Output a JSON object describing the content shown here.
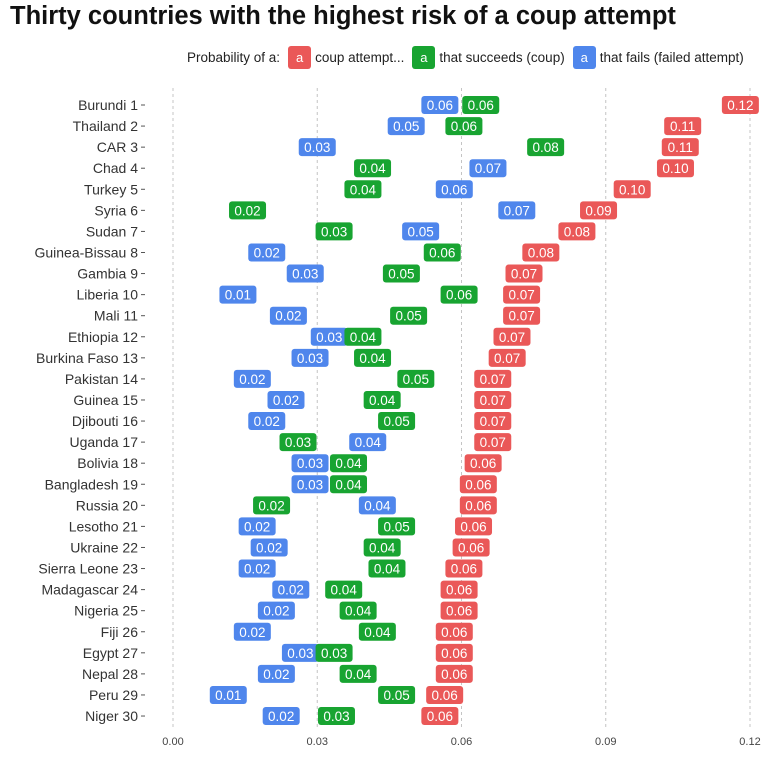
{
  "title": "Thirty countries with the highest risk of a coup attempt",
  "legend": {
    "prefix": "Probability of a:",
    "key_glyph": "a",
    "items": [
      {
        "label": "coup attempt...",
        "color": "#ea5858"
      },
      {
        "label": "that succeeds (coup)",
        "color": "#18a431"
      },
      {
        "label": "that fails (failed attempt)",
        "color": "#4f86ec"
      }
    ]
  },
  "chart_data": {
    "type": "scatter",
    "title": "Thirty countries with the highest risk of a coup attempt",
    "xlabel": "",
    "ylabel": "",
    "xlim": [
      0,
      0.12
    ],
    "x_ticks": [
      "0.00",
      "0.03",
      "0.06",
      "0.09",
      "0.12"
    ],
    "grid": "vertical dashed",
    "legend_position": "top",
    "categories": [
      "Burundi 1",
      "Thailand 2",
      "CAR 3",
      "Chad 4",
      "Turkey 5",
      "Syria 6",
      "Sudan 7",
      "Guinea-Bissau 8",
      "Gambia 9",
      "Liberia 10",
      "Mali 11",
      "Ethiopia 12",
      "Burkina Faso 13",
      "Pakistan 14",
      "Guinea 15",
      "Djibouti 16",
      "Uganda 17",
      "Bolivia 18",
      "Bangladesh 19",
      "Russia 20",
      "Lesotho 21",
      "Ukraine 22",
      "Sierra Leone 23",
      "Madagascar 24",
      "Nigeria 25",
      "Fiji 26",
      "Egypt 27",
      "Nepal 28",
      "Peru 29",
      "Niger 30"
    ],
    "series": [
      {
        "name": "coup attempt...",
        "color": "#ea5858",
        "values": [
          0.118,
          0.106,
          0.1055,
          0.1045,
          0.0955,
          0.0885,
          0.084,
          0.0765,
          0.073,
          0.0725,
          0.0725,
          0.0705,
          0.0695,
          0.0665,
          0.0665,
          0.0665,
          0.0665,
          0.0645,
          0.0635,
          0.0635,
          0.0625,
          0.062,
          0.0605,
          0.0595,
          0.0595,
          0.0585,
          0.0585,
          0.0585,
          0.0565,
          0.0555
        ],
        "labels": [
          "0.12",
          "0.11",
          "0.11",
          "0.10",
          "0.10",
          "0.09",
          "0.08",
          "0.08",
          "0.07",
          "0.07",
          "0.07",
          "0.07",
          "0.07",
          "0.07",
          "0.07",
          "0.07",
          "0.07",
          "0.06",
          "0.06",
          "0.06",
          "0.06",
          "0.06",
          "0.06",
          "0.06",
          "0.06",
          "0.06",
          "0.06",
          "0.06",
          "0.06",
          "0.06"
        ]
      },
      {
        "name": "that succeeds (coup)",
        "color": "#18a431",
        "values": [
          0.064,
          0.0605,
          0.0775,
          0.0415,
          0.0395,
          0.0155,
          0.0335,
          0.056,
          0.0475,
          0.0595,
          0.049,
          0.0395,
          0.0415,
          0.0505,
          0.0435,
          0.0465,
          0.026,
          0.0365,
          0.0365,
          0.0205,
          0.0465,
          0.0435,
          0.0445,
          0.0355,
          0.0385,
          0.0425,
          0.0335,
          0.0385,
          0.0465,
          0.034
        ],
        "labels": [
          "0.06",
          "0.06",
          "0.08",
          "0.04",
          "0.04",
          "0.02",
          "0.03",
          "0.06",
          "0.05",
          "0.06",
          "0.05",
          "0.04",
          "0.04",
          "0.05",
          "0.04",
          "0.05",
          "0.03",
          "0.04",
          "0.04",
          "0.02",
          "0.05",
          "0.04",
          "0.04",
          "0.04",
          "0.04",
          "0.04",
          "0.03",
          "0.04",
          "0.05",
          "0.03"
        ]
      },
      {
        "name": "that fails (failed attempt)",
        "color": "#4f86ec",
        "values": [
          0.0555,
          0.0485,
          0.03,
          0.0655,
          0.0585,
          0.0715,
          0.0515,
          0.0195,
          0.0275,
          0.0135,
          0.024,
          0.0325,
          0.0285,
          0.0165,
          0.0235,
          0.0195,
          0.0405,
          0.0285,
          0.0285,
          0.0425,
          0.0175,
          0.02,
          0.0175,
          0.0245,
          0.0215,
          0.0165,
          0.0265,
          0.0215,
          0.0115,
          0.0225
        ],
        "labels": [
          "0.06",
          "0.05",
          "0.03",
          "0.07",
          "0.06",
          "0.07",
          "0.05",
          "0.02",
          "0.03",
          "0.01",
          "0.02",
          "0.03",
          "0.03",
          "0.02",
          "0.02",
          "0.02",
          "0.04",
          "0.03",
          "0.03",
          "0.04",
          "0.02",
          "0.02",
          "0.02",
          "0.02",
          "0.02",
          "0.02",
          "0.03",
          "0.02",
          "0.01",
          "0.02"
        ]
      }
    ]
  }
}
